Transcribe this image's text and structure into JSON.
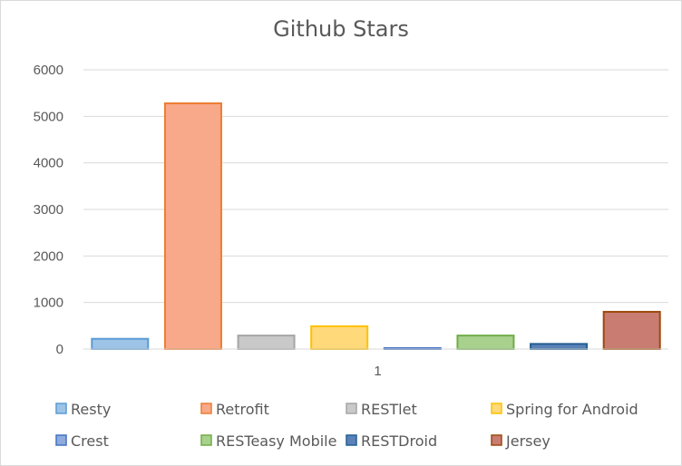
{
  "chart_data": {
    "type": "bar",
    "title": "Github Stars",
    "categories": [
      "1"
    ],
    "ylim": [
      0,
      6000
    ],
    "yticks": [
      0,
      1000,
      2000,
      3000,
      4000,
      5000,
      6000
    ],
    "grid": true,
    "legend_position": "bottom",
    "series": [
      {
        "name": "Resty",
        "values": [
          220
        ],
        "color": "#9dc3e6",
        "stroke": "#5b9bd5"
      },
      {
        "name": "Retrofit",
        "values": [
          5280
        ],
        "color": "#f8a98a",
        "stroke": "#ed7d31"
      },
      {
        "name": "RESTlet",
        "values": [
          290
        ],
        "color": "#c9c9c9",
        "stroke": "#a5a5a5"
      },
      {
        "name": "Spring for Android",
        "values": [
          490
        ],
        "color": "#ffd97a",
        "stroke": "#ffc000"
      },
      {
        "name": "Crest",
        "values": [
          20
        ],
        "color": "#8faadc",
        "stroke": "#4472c4"
      },
      {
        "name": "RESTeasy Mobile",
        "values": [
          290
        ],
        "color": "#a9d18e",
        "stroke": "#70ad47"
      },
      {
        "name": "RESTDroid",
        "values": [
          110
        ],
        "color": "#5a82b8",
        "stroke": "#255e91"
      },
      {
        "name": "Jersey",
        "values": [
          800
        ],
        "color": "#c97c72",
        "stroke": "#9e480e"
      }
    ]
  }
}
